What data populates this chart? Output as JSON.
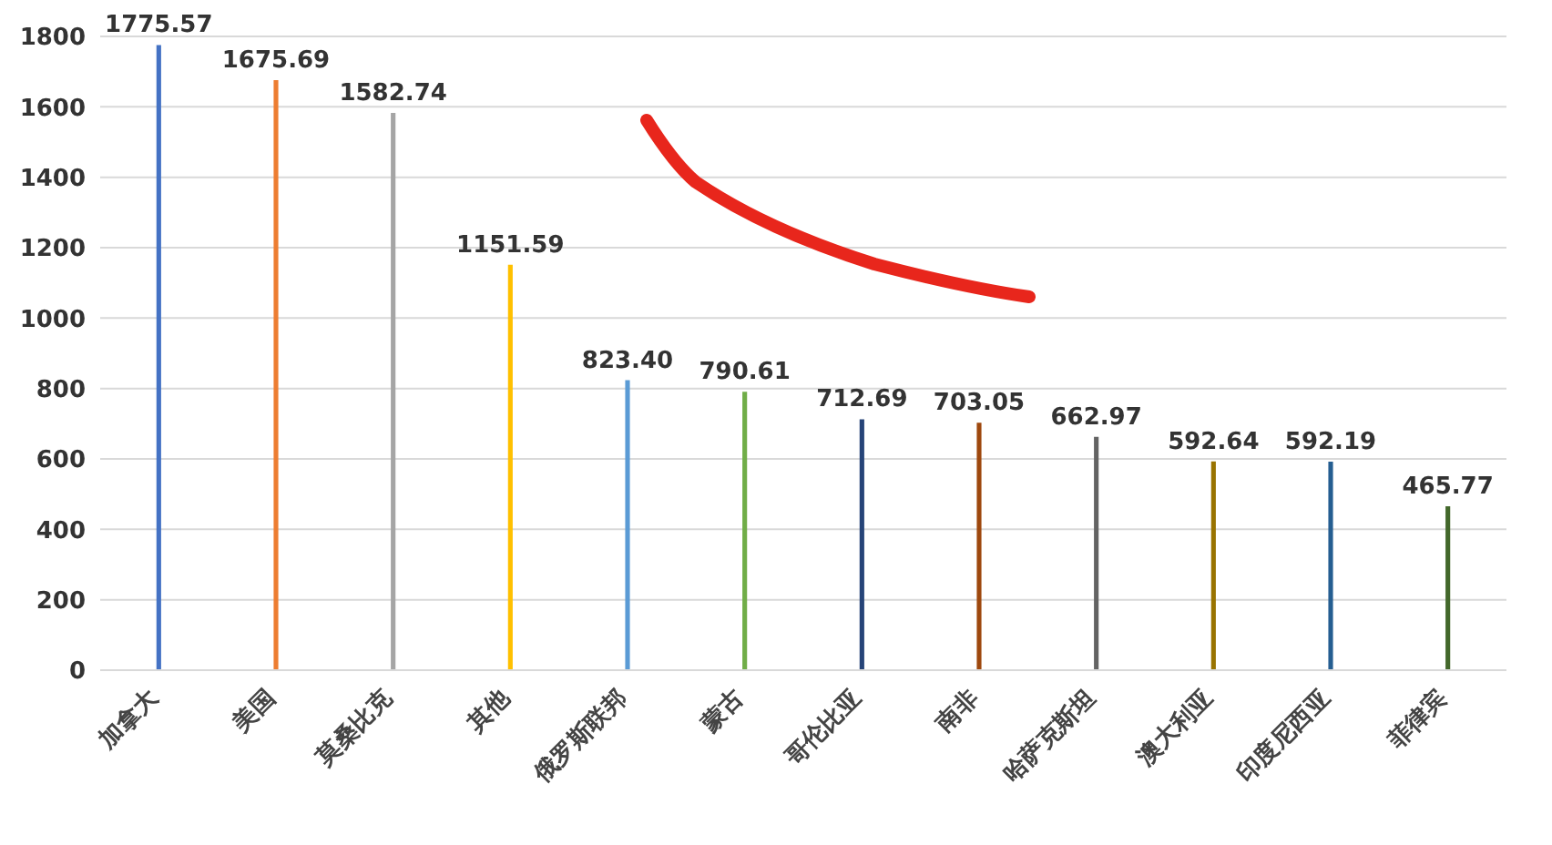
{
  "chart_data": {
    "type": "bar",
    "categories": [
      "加拿大",
      "美国",
      "莫桑比克",
      "其他",
      "俄罗斯联邦",
      "蒙古",
      "哥伦比亚",
      "南非",
      "哈萨克斯坦",
      "澳大利亚",
      "印度尼西亚",
      "菲律宾"
    ],
    "values": [
      1775.57,
      1675.69,
      1582.74,
      1151.59,
      823.4,
      790.61,
      712.69,
      703.05,
      662.97,
      592.64,
      592.19,
      465.77
    ],
    "value_labels": [
      "1775.57",
      "1675.69",
      "1582.74",
      "1151.59",
      "823.40",
      "790.61",
      "712.69",
      "703.05",
      "662.97",
      "592.64",
      "592.19",
      "465.77"
    ],
    "colors": [
      "#4472c4",
      "#ed7d31",
      "#a5a5a5",
      "#ffc000",
      "#5b9bd5",
      "#70ad47",
      "#264478",
      "#9e480e",
      "#636363",
      "#997300",
      "#255e91",
      "#43682b"
    ],
    "ylim": [
      0,
      1800
    ],
    "yticks": [
      0,
      200,
      400,
      600,
      800,
      1000,
      1200,
      1400,
      1600,
      1800
    ],
    "grid": "y"
  }
}
